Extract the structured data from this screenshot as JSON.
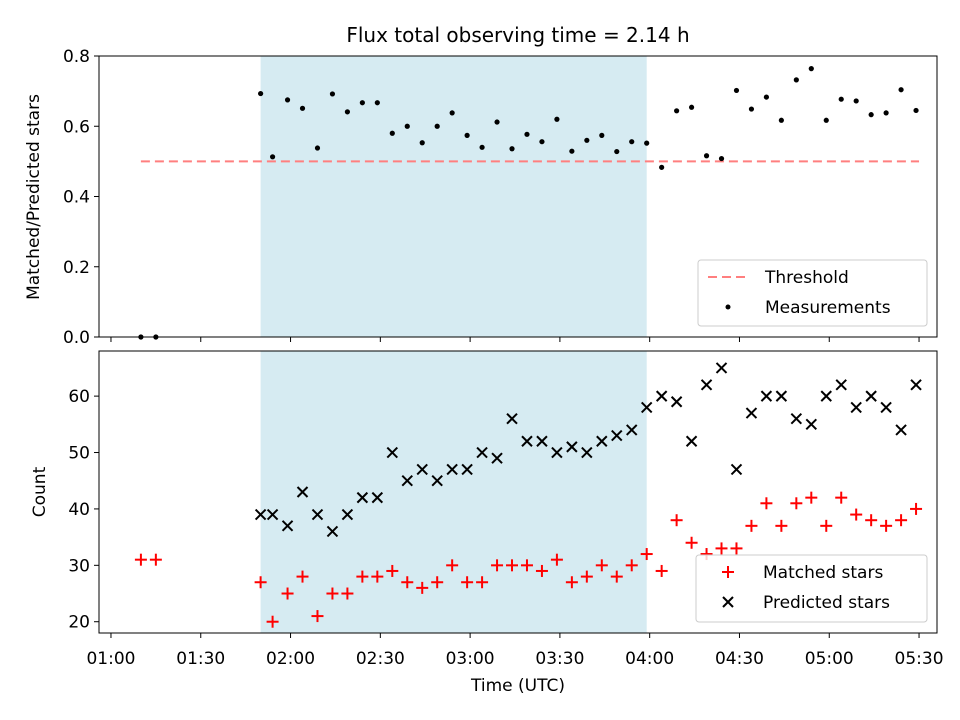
{
  "chart_data": [
    {
      "type": "scatter",
      "title": "Flux total observing time = 2.14 h",
      "ylabel": "Matched/Predicted stars",
      "ylim": [
        0,
        0.8
      ],
      "yticks": [
        "0.0",
        "0.2",
        "0.4",
        "0.6",
        "0.8"
      ],
      "highlight_span": {
        "start": "01:50",
        "end": "03:59",
        "color": "#add8e6"
      },
      "threshold": {
        "name": "Threshold",
        "value": 0.5,
        "x_start": "01:10",
        "x_end": "05:30",
        "color": "#ff7f7f"
      },
      "legend": {
        "placement": "lower right",
        "entries": [
          "Threshold",
          "Measurements"
        ]
      },
      "series": [
        {
          "name": "Measurements",
          "marker": "dot",
          "color": "#000000",
          "x": [
            "01:10",
            "01:15",
            "01:50",
            "01:54",
            "01:59",
            "02:04",
            "02:09",
            "02:14",
            "02:19",
            "02:24",
            "02:29",
            "02:34",
            "02:39",
            "02:44",
            "02:49",
            "02:54",
            "02:59",
            "03:04",
            "03:09",
            "03:14",
            "03:19",
            "03:24",
            "03:29",
            "03:34",
            "03:39",
            "03:44",
            "03:49",
            "03:54",
            "03:59",
            "04:04",
            "04:09",
            "04:14",
            "04:19",
            "04:24",
            "04:29",
            "04:34",
            "04:39",
            "04:44",
            "04:49",
            "04:54",
            "04:59",
            "05:04",
            "05:09",
            "05:14",
            "05:19",
            "05:24",
            "05:29"
          ],
          "y": [
            0.0,
            0.0,
            0.693,
            0.513,
            0.675,
            0.651,
            0.538,
            0.692,
            0.641,
            0.667,
            0.667,
            0.58,
            0.6,
            0.553,
            0.6,
            0.638,
            0.574,
            0.54,
            0.612,
            0.536,
            0.577,
            0.556,
            0.62,
            0.529,
            0.56,
            0.574,
            0.528,
            0.556,
            0.552,
            0.483,
            0.644,
            0.654,
            0.516,
            0.508,
            0.702,
            0.649,
            0.683,
            0.617,
            0.732,
            0.764,
            0.617,
            0.677,
            0.672,
            0.633,
            0.638,
            0.704,
            0.645
          ]
        }
      ]
    },
    {
      "type": "scatter",
      "xlabel": "Time (UTC)",
      "ylabel": "Count",
      "ylim": [
        18,
        68
      ],
      "xlim": [
        "00:56",
        "05:36"
      ],
      "xticks": [
        "01:00",
        "01:30",
        "02:00",
        "02:30",
        "03:00",
        "03:30",
        "04:00",
        "04:30",
        "05:00",
        "05:30"
      ],
      "yticks": [
        "20",
        "30",
        "40",
        "50",
        "60"
      ],
      "highlight_span": {
        "start": "01:50",
        "end": "03:59",
        "color": "#add8e6"
      },
      "legend": {
        "placement": "lower right",
        "entries": [
          "Matched stars",
          "Predicted stars"
        ]
      },
      "series": [
        {
          "name": "Matched stars",
          "marker": "plus",
          "color": "#ff0000",
          "x": [
            "01:10",
            "01:15",
            "01:50",
            "01:54",
            "01:59",
            "02:04",
            "02:09",
            "02:14",
            "02:19",
            "02:24",
            "02:29",
            "02:34",
            "02:39",
            "02:44",
            "02:49",
            "02:54",
            "02:59",
            "03:04",
            "03:09",
            "03:14",
            "03:19",
            "03:24",
            "03:29",
            "03:34",
            "03:39",
            "03:44",
            "03:49",
            "03:54",
            "03:59",
            "04:04",
            "04:09",
            "04:14",
            "04:19",
            "04:24",
            "04:29",
            "04:34",
            "04:39",
            "04:44",
            "04:49",
            "04:54",
            "04:59",
            "05:04",
            "05:09",
            "05:14",
            "05:19",
            "05:24",
            "05:29"
          ],
          "y": [
            31,
            31,
            27,
            20,
            25,
            28,
            21,
            25,
            25,
            28,
            28,
            29,
            27,
            26,
            27,
            30,
            27,
            27,
            30,
            30,
            30,
            29,
            31,
            27,
            28,
            30,
            28,
            30,
            32,
            29,
            38,
            34,
            32,
            33,
            33,
            37,
            41,
            37,
            41,
            42,
            37,
            42,
            39,
            38,
            37,
            38,
            40
          ]
        },
        {
          "name": "Predicted stars",
          "marker": "x",
          "color": "#000000",
          "x": [
            "01:50",
            "01:54",
            "01:59",
            "02:04",
            "02:09",
            "02:14",
            "02:19",
            "02:24",
            "02:29",
            "02:34",
            "02:39",
            "02:44",
            "02:49",
            "02:54",
            "02:59",
            "03:04",
            "03:09",
            "03:14",
            "03:19",
            "03:24",
            "03:29",
            "03:34",
            "03:39",
            "03:44",
            "03:49",
            "03:54",
            "03:59",
            "04:04",
            "04:09",
            "04:14",
            "04:19",
            "04:24",
            "04:29",
            "04:34",
            "04:39",
            "04:44",
            "04:49",
            "04:54",
            "04:59",
            "05:04",
            "05:09",
            "05:14",
            "05:19",
            "05:24",
            "05:29"
          ],
          "y": [
            39,
            39,
            37,
            43,
            39,
            36,
            39,
            42,
            42,
            50,
            45,
            47,
            45,
            47,
            47,
            50,
            49,
            56,
            52,
            52,
            50,
            51,
            50,
            52,
            53,
            54,
            58,
            60,
            59,
            52,
            62,
            65,
            47,
            57,
            60,
            60,
            56,
            55,
            60,
            62,
            58,
            60,
            58,
            54,
            62
          ]
        }
      ]
    }
  ]
}
